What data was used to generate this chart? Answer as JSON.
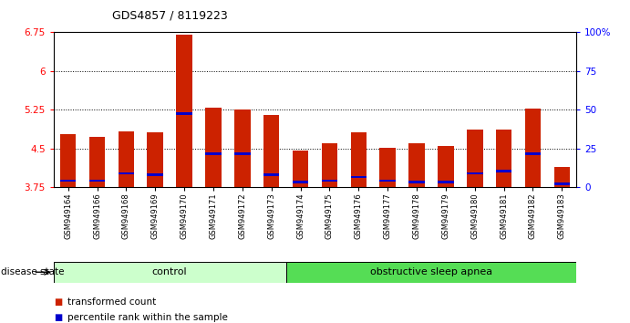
{
  "title": "GDS4857 / 8119223",
  "samples": [
    "GSM949164",
    "GSM949166",
    "GSM949168",
    "GSM949169",
    "GSM949170",
    "GSM949171",
    "GSM949172",
    "GSM949173",
    "GSM949174",
    "GSM949175",
    "GSM949176",
    "GSM949177",
    "GSM949178",
    "GSM949179",
    "GSM949180",
    "GSM949181",
    "GSM949182",
    "GSM949183"
  ],
  "bar_values": [
    4.78,
    4.72,
    4.83,
    4.82,
    6.7,
    5.3,
    5.25,
    5.15,
    4.47,
    4.6,
    4.82,
    4.52,
    4.6,
    4.55,
    4.87,
    4.87,
    5.28,
    4.15
  ],
  "percentile_values": [
    3.88,
    3.88,
    4.02,
    4.0,
    5.17,
    4.4,
    4.4,
    4.0,
    3.85,
    3.88,
    3.95,
    3.88,
    3.85,
    3.85,
    4.02,
    4.07,
    4.4,
    3.82
  ],
  "bar_color": "#cc2200",
  "percentile_color": "#0000cc",
  "ylim_left": [
    3.75,
    6.75
  ],
  "yticks_left": [
    3.75,
    4.5,
    5.25,
    6.0,
    6.75
  ],
  "ylim_right": [
    0,
    100
  ],
  "yticks_right": [
    0,
    25,
    50,
    75,
    100
  ],
  "ytick_labels_left": [
    "3.75",
    "4.5",
    "5.25",
    "6",
    "6.75"
  ],
  "ytick_labels_right": [
    "0",
    "25",
    "50",
    "75",
    "100%"
  ],
  "grid_values": [
    4.5,
    5.25,
    6.0,
    6.75
  ],
  "control_samples": 8,
  "total_samples": 18,
  "control_label": "control",
  "disease_label": "obstructive sleep apnea",
  "disease_state_label": "disease state",
  "legend_bar_label": "transformed count",
  "legend_percentile_label": "percentile rank within the sample",
  "control_bg": "#ccffcc",
  "disease_bg": "#55dd55",
  "bar_width": 0.55,
  "bar_bottom": 3.75
}
